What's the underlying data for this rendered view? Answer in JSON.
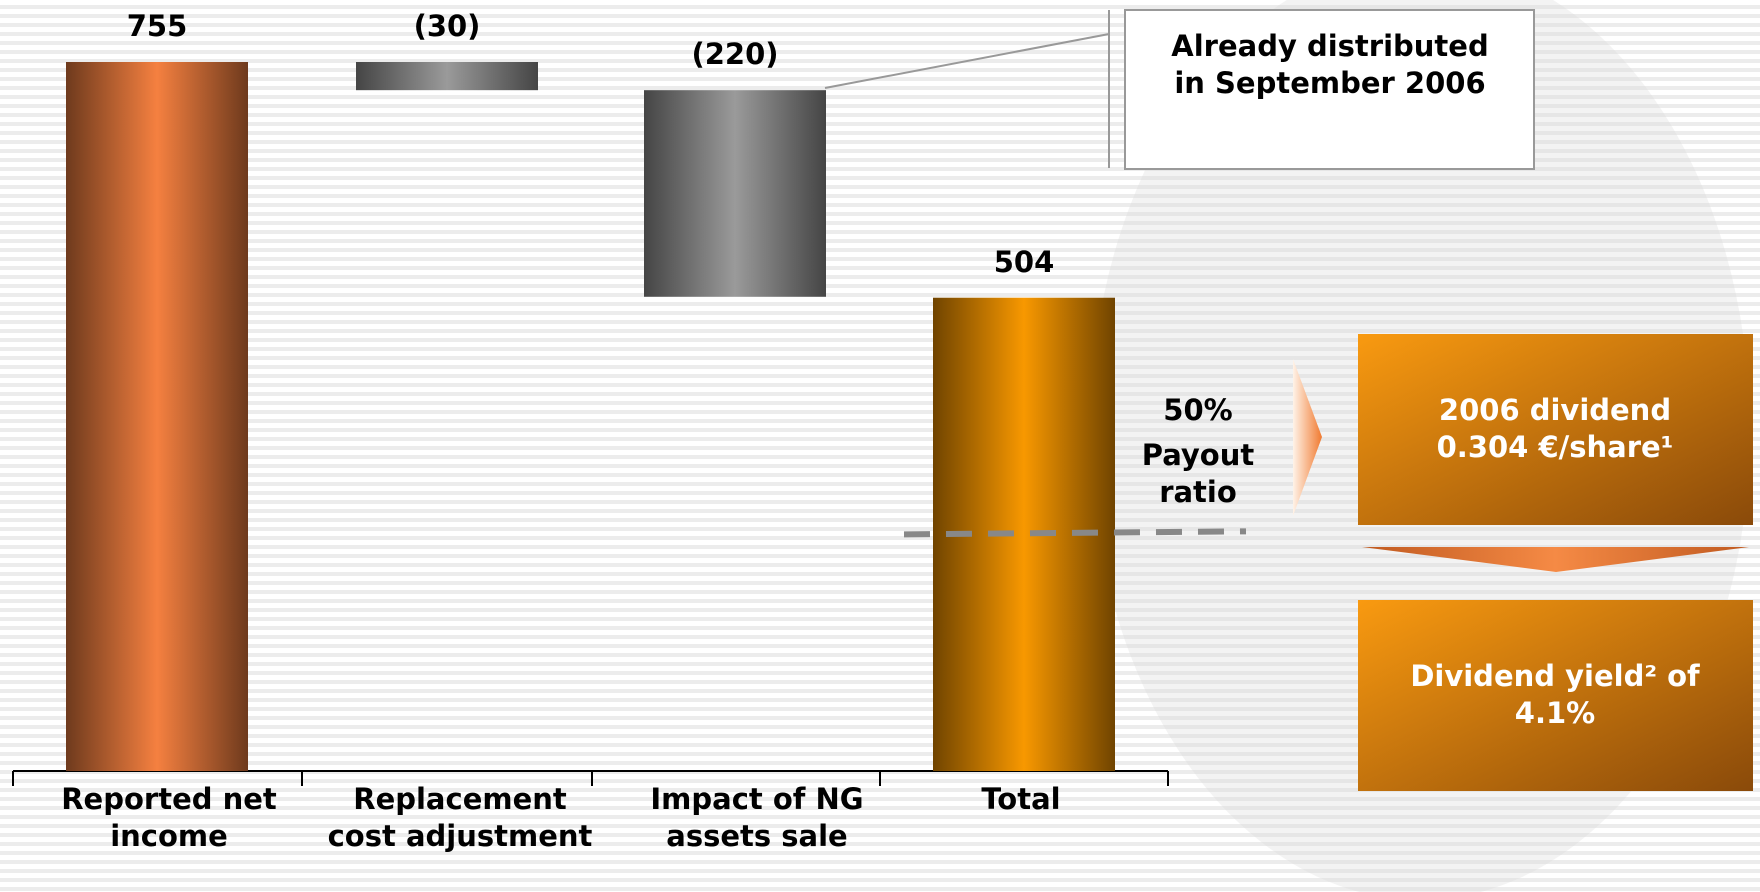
{
  "chart_data": {
    "type": "waterfall",
    "categories": [
      "Reported net income",
      "Replacement cost adjustment",
      "Impact of NG assets sale",
      "Total"
    ],
    "values": [
      755,
      -30,
      -220,
      504
    ],
    "value_labels": [
      "755",
      "(30)",
      "(220)",
      "504"
    ],
    "measure": [
      "absolute",
      "relative",
      "relative",
      "total"
    ],
    "colors": [
      "#f58040",
      "#9a9a9a",
      "#9a9a9a",
      "#f89800"
    ]
  },
  "annotations": {
    "callout": "Already distributed in September 2006",
    "payout": {
      "value": 50,
      "label": "50%",
      "text": "Payout ratio"
    }
  },
  "boxes": [
    "2006 dividend 0.304 €/share¹",
    "Dividend yield² of 4.1%"
  ]
}
